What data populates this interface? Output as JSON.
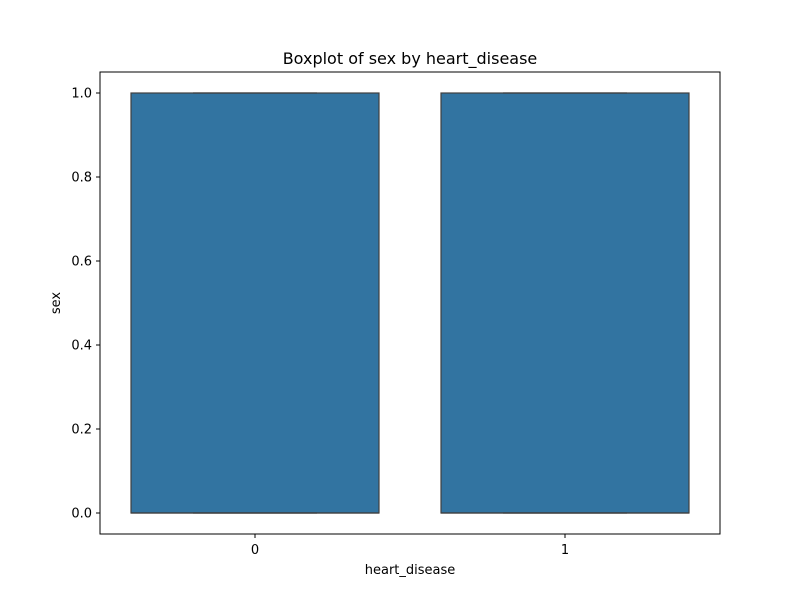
{
  "chart_data": {
    "type": "box",
    "title": "Boxplot of sex by heart_disease",
    "xlabel": "heart_disease",
    "ylabel": "sex",
    "categories": [
      "0",
      "1"
    ],
    "boxes": [
      {
        "category": "0",
        "whisker_low": 0.0,
        "q1": 0.0,
        "median": 0.0,
        "q3": 1.0,
        "whisker_high": 1.0
      },
      {
        "category": "1",
        "whisker_low": 0.0,
        "q1": 0.0,
        "median": 0.0,
        "q3": 1.0,
        "whisker_high": 1.0
      }
    ],
    "ylim": [
      -0.05,
      1.05
    ],
    "yticks": [
      0.0,
      0.2,
      0.4,
      0.6,
      0.8,
      1.0
    ],
    "ytick_labels": [
      "0.0",
      "0.2",
      "0.4",
      "0.6",
      "0.8",
      "1.0"
    ],
    "grid": false,
    "colors": {
      "box_fill": "#3274a1",
      "box_edge": "#3f3f3f",
      "axis": "#000000",
      "background": "#ffffff"
    }
  }
}
